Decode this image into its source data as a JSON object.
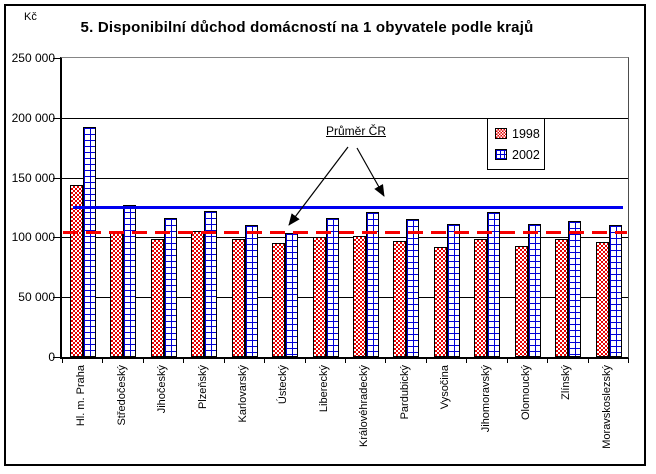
{
  "title": "5. Disponibilní důchod domácností na 1 obyvatele podle krajů",
  "y_axis": {
    "unit": "Kč",
    "tick_labels": [
      "0",
      "50 000",
      "100 000",
      "150 000",
      "200 000",
      "250 000"
    ]
  },
  "annotation": {
    "label": "Průměr ČR"
  },
  "legend": {
    "items": [
      {
        "label": "1998",
        "pattern": "red-checkerboard"
      },
      {
        "label": "2002",
        "pattern": "blue-grid"
      }
    ]
  },
  "colors": {
    "series_1998": "#e60000",
    "series_2002": "#0000d8",
    "average_1998_line": "#f80000",
    "average_2002_line": "#0000ef"
  },
  "chart_data": {
    "type": "bar",
    "title": "5. Disponibilní důchod domácností na 1 obyvatele podle krajů",
    "ylabel": "Kč",
    "ylim": [
      0,
      250000
    ],
    "ytick_step": 50000,
    "grid": true,
    "legend_position": "upper-right-inside",
    "categories": [
      "Hl. m. Praha",
      "Středočeský",
      "Jihočeský",
      "Plzeňský",
      "Karlovarský",
      "Ústecký",
      "Liberecký",
      "Královéhradecký",
      "Pardubický",
      "Vysočina",
      "Jihomoravský",
      "Olomoucký",
      "Zlínský",
      "Moravskoslezský"
    ],
    "series": [
      {
        "name": "1998",
        "values": [
          144000,
          104000,
          99000,
          105000,
          99000,
          95000,
          100000,
          101000,
          97000,
          92000,
          99000,
          93000,
          99000,
          96000
        ]
      },
      {
        "name": "2002",
        "values": [
          192000,
          127000,
          116000,
          122000,
          110000,
          104000,
          116000,
          121000,
          115000,
          111000,
          121000,
          111000,
          114000,
          110000
        ]
      }
    ],
    "reference_lines": [
      {
        "label": "Průměr ČR",
        "series": "1998",
        "value": 104500,
        "style": "dashed"
      },
      {
        "label": "Průměr ČR",
        "series": "2002",
        "value": 125500,
        "style": "solid"
      }
    ]
  }
}
